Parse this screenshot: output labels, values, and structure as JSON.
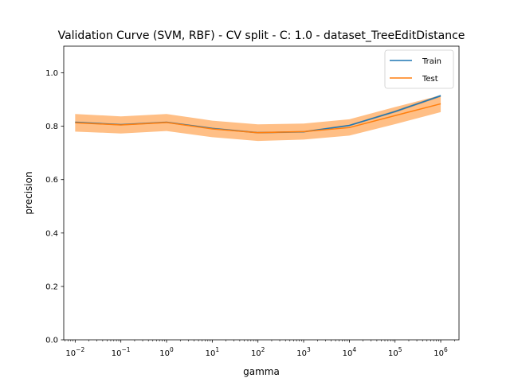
{
  "chart_data": {
    "type": "line",
    "title": "Validation Curve (SVM, RBF) - CV split - C: 1.0 - dataset_TreeEditDistance",
    "xlabel": "gamma",
    "ylabel": "precision",
    "xscale": "log",
    "xlim": [
      -2.25,
      6.4
    ],
    "ylim": [
      0.0,
      1.1
    ],
    "x": [
      0.01,
      0.1,
      1,
      10,
      100,
      1000,
      10000,
      100000,
      1000000
    ],
    "x_tick_labels": [
      "10^-2",
      "10^-1",
      "10^0",
      "10^1",
      "10^2",
      "10^3",
      "10^4",
      "10^5",
      "10^6"
    ],
    "y_ticks": [
      "0.0",
      "0.2",
      "0.4",
      "0.6",
      "0.8",
      "1.0"
    ],
    "grid": false,
    "legend_position": "top-right",
    "series": [
      {
        "name": "Train",
        "color": "#1f77b4",
        "values": [
          0.815,
          0.806,
          0.815,
          0.792,
          0.776,
          0.779,
          0.803,
          0.855,
          0.914
        ],
        "band_low": [
          0.812,
          0.803,
          0.812,
          0.789,
          0.773,
          0.776,
          0.8,
          0.851,
          0.91
        ],
        "band_high": [
          0.818,
          0.809,
          0.818,
          0.795,
          0.779,
          0.782,
          0.806,
          0.859,
          0.918
        ]
      },
      {
        "name": "Test",
        "color": "#ff7f0e",
        "values": [
          0.813,
          0.805,
          0.814,
          0.79,
          0.776,
          0.78,
          0.795,
          0.84,
          0.884
        ],
        "band_low": [
          0.78,
          0.773,
          0.782,
          0.759,
          0.745,
          0.75,
          0.765,
          0.808,
          0.853
        ],
        "band_high": [
          0.846,
          0.837,
          0.846,
          0.821,
          0.807,
          0.81,
          0.826,
          0.872,
          0.916
        ]
      }
    ]
  }
}
